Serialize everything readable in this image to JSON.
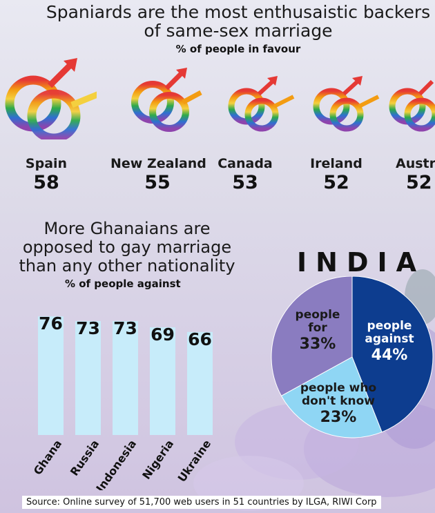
{
  "title": "Spaniards are the most enthusaistic backers",
  "title2": "of same-sex marriage",
  "subtitle": "% of people in favour",
  "source": "Source: Online survey of 51,700 web users in 51 countries by ILGA, RIWI Corp",
  "colors": {
    "bar": "#c7ecfa",
    "pie_against": "#0d3d8f",
    "pie_for": "#8a7cc0",
    "pie_dont_know": "#8fd6f4"
  },
  "chart_data": [
    {
      "type": "bar",
      "title": "Spaniards are the most enthusaistic backers of same-sex marriage",
      "subtitle": "% of people in favour",
      "categories": [
        "Spain",
        "New Zealand",
        "Canada",
        "Ireland",
        "Austria"
      ],
      "values": [
        58,
        55,
        53,
        52,
        52
      ],
      "visible_labels": [
        "Spain",
        "New Zealand",
        "Canada",
        "Ireland",
        "Austri"
      ]
    },
    {
      "type": "bar",
      "title": "More Ghanaians are opposed to gay marriage than any other nationality",
      "title_lines": [
        "More Ghanaians are",
        "opposed to gay marriage",
        "than any other nationality"
      ],
      "subtitle": "% of people against",
      "categories": [
        "Ghana",
        "Russia",
        "Indonesia",
        "Nigeria",
        "Ukraine"
      ],
      "values": [
        76,
        73,
        73,
        69,
        66
      ],
      "ylim": [
        0,
        100
      ],
      "grid": false
    },
    {
      "type": "pie",
      "title": "INDIA",
      "slices": [
        {
          "label_lines": [
            "people",
            "against"
          ],
          "value": 44,
          "display": "44%"
        },
        {
          "label_lines": [
            "people who",
            "don't know"
          ],
          "value": 23,
          "display": "23%"
        },
        {
          "label_lines": [
            "people",
            "for"
          ],
          "value": 33,
          "display": "33%"
        }
      ]
    }
  ]
}
